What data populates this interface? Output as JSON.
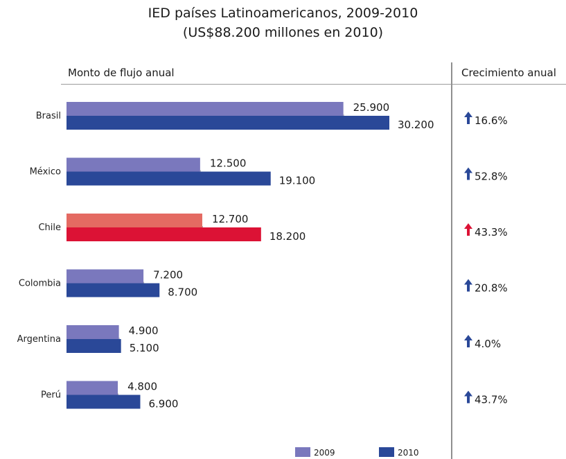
{
  "chart_data": {
    "type": "bar",
    "title": "IED países Latinoamericanos, 2009-2010",
    "subtitle": "(US$88.200 millones en 2010)",
    "left_header": "Monto de flujo anual",
    "right_header": "Crecimiento anual",
    "categories": [
      "Brasil",
      "México",
      "Chile",
      "Colombia",
      "Argentina",
      "Perú"
    ],
    "series": [
      {
        "name": "2009",
        "values": [
          25900,
          12500,
          12700,
          7200,
          4900,
          4800
        ],
        "labels": [
          "25.900",
          "12.500",
          "12.700",
          "7.200",
          "4.900",
          "4.800"
        ]
      },
      {
        "name": "2010",
        "values": [
          30200,
          19100,
          18200,
          8700,
          5100,
          6900
        ],
        "labels": [
          "30.200",
          "19.100",
          "18.200",
          "8.700",
          "5.100",
          "6.900"
        ]
      }
    ],
    "growth": [
      "16.6%",
      "52.8%",
      "43.3%",
      "20.8%",
      "4.0%",
      "43.7%"
    ],
    "highlight_category": "Chile",
    "colors": {
      "2009": "#7a78bd",
      "2010": "#2a4898",
      "highlight_2009": "#e46a62",
      "highlight_2010": "#dc1235",
      "arrow": "#2a4898",
      "highlight_arrow": "#dc1235"
    },
    "legend_placement": "bottom-right",
    "orientation": "horizontal"
  }
}
